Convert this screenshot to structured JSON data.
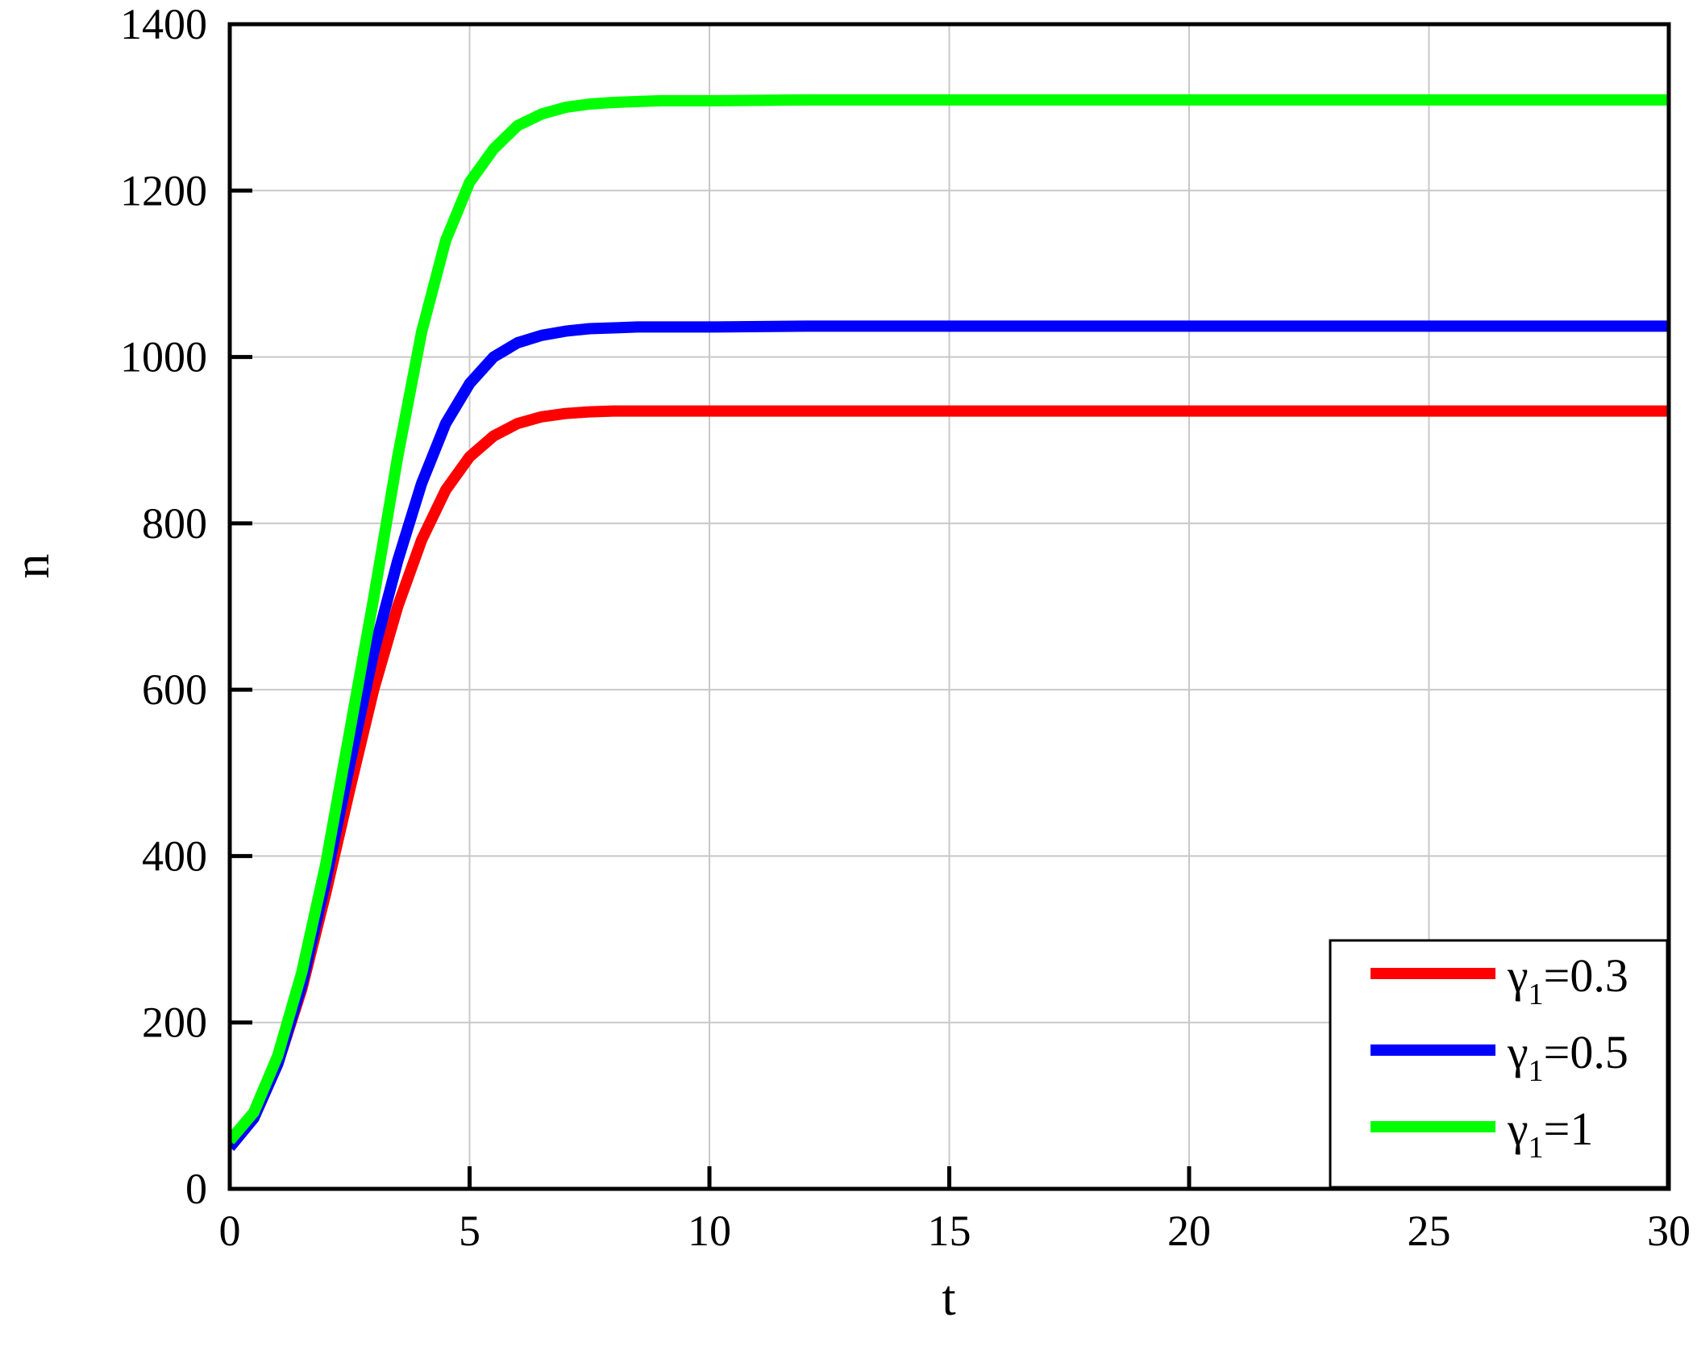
{
  "chart_data": {
    "type": "line",
    "title": "",
    "xlabel": "t",
    "ylabel": "n",
    "xlim": [
      0,
      30
    ],
    "ylim": [
      0,
      1400
    ],
    "xticks": [
      0,
      5,
      10,
      15,
      20,
      25,
      30
    ],
    "yticks": [
      0,
      200,
      400,
      600,
      800,
      1000,
      1200,
      1400
    ],
    "grid": true,
    "legend_position": "bottom-right",
    "x": [
      0,
      0.5,
      1,
      1.5,
      2,
      2.5,
      3,
      3.5,
      4,
      4.5,
      5,
      5.5,
      6,
      6.5,
      7,
      7.5,
      8,
      8.5,
      9,
      9.5,
      10,
      12,
      15,
      20,
      25,
      30
    ],
    "series": [
      {
        "name": "γ1=0.3",
        "legend_main": "γ",
        "legend_sub": "1",
        "legend_tail": "=0.3",
        "color": "#ff0000",
        "values": [
          50,
          85,
          150,
          240,
          355,
          480,
          600,
          700,
          780,
          840,
          880,
          905,
          920,
          928,
          932,
          934,
          935,
          935,
          935,
          935,
          935,
          935,
          935,
          935,
          935,
          935
        ]
      },
      {
        "name": "γ1=0.5",
        "legend_main": "γ",
        "legend_sub": "1",
        "legend_tail": "=0.5",
        "color": "#0000ff",
        "values": [
          50,
          85,
          150,
          245,
          370,
          510,
          645,
          755,
          848,
          920,
          968,
          1000,
          1017,
          1026,
          1031,
          1034,
          1035,
          1036,
          1036,
          1036,
          1036,
          1037,
          1037,
          1037,
          1037,
          1037
        ]
      },
      {
        "name": "γ1=1",
        "legend_main": "γ",
        "legend_sub": "1",
        "legend_tail": "=1",
        "color": "#00ff00",
        "values": [
          58,
          92,
          160,
          260,
          390,
          550,
          710,
          880,
          1030,
          1140,
          1210,
          1250,
          1278,
          1292,
          1300,
          1304,
          1306,
          1307,
          1308,
          1308,
          1308,
          1309,
          1309,
          1309,
          1309,
          1309
        ]
      }
    ]
  }
}
